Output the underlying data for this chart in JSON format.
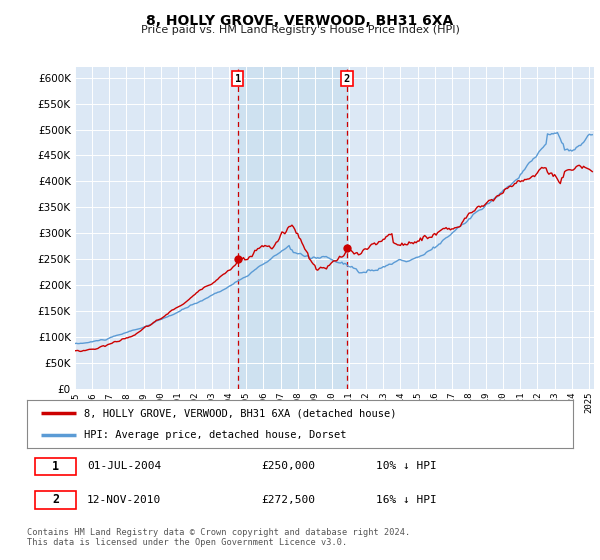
{
  "title": "8, HOLLY GROVE, VERWOOD, BH31 6XA",
  "subtitle": "Price paid vs. HM Land Registry's House Price Index (HPI)",
  "ylim": [
    0,
    620000
  ],
  "ytick_values": [
    0,
    50000,
    100000,
    150000,
    200000,
    250000,
    300000,
    350000,
    400000,
    450000,
    500000,
    550000,
    600000
  ],
  "hpi_color": "#5b9bd5",
  "price_color": "#cc0000",
  "bg_color": "#dce8f5",
  "shade_color": "#cce0f0",
  "legend_label1": "8, HOLLY GROVE, VERWOOD, BH31 6XA (detached house)",
  "legend_label2": "HPI: Average price, detached house, Dorset",
  "table_row1": [
    "1",
    "01-JUL-2004",
    "£250,000",
    "10% ↓ HPI"
  ],
  "table_row2": [
    "2",
    "12-NOV-2010",
    "£272,500",
    "16% ↓ HPI"
  ],
  "footnote": "Contains HM Land Registry data © Crown copyright and database right 2024.\nThis data is licensed under the Open Government Licence v3.0.",
  "sale1_x": 2004.5,
  "sale1_y": 250000,
  "sale2_x": 2010.87,
  "sale2_y": 272500,
  "shade1_x_start": 2004.5,
  "shade1_x_end": 2010.87,
  "xlim_start": 1995.0,
  "xlim_end": 2025.3,
  "xtick_years": [
    1995,
    1996,
    1997,
    1998,
    1999,
    2000,
    2001,
    2002,
    2003,
    2004,
    2005,
    2006,
    2007,
    2008,
    2009,
    2010,
    2011,
    2012,
    2013,
    2014,
    2015,
    2016,
    2017,
    2018,
    2019,
    2020,
    2021,
    2022,
    2023,
    2024,
    2025
  ]
}
